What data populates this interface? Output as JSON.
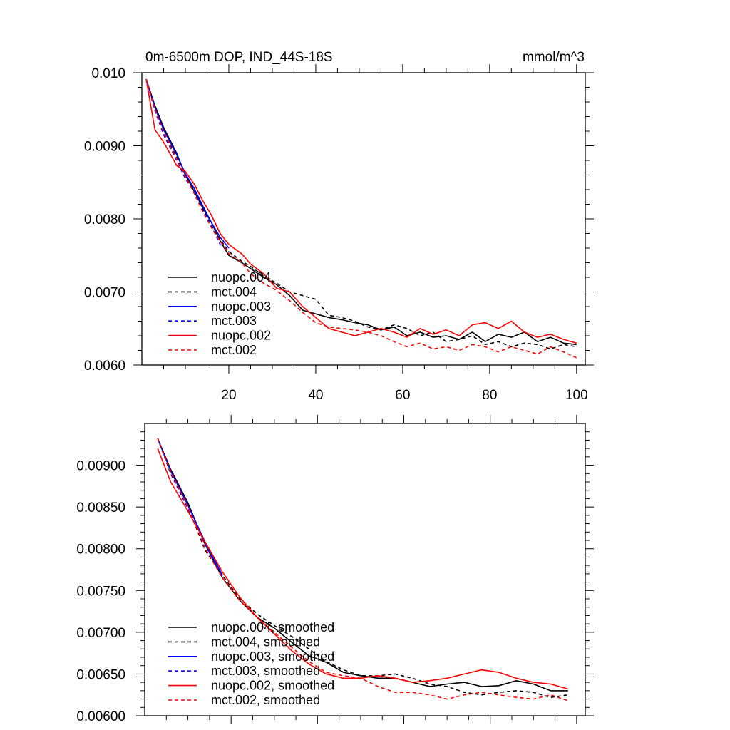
{
  "chart_data": [
    {
      "type": "line",
      "title": "0m-6500m DOP, IND_44S-18S",
      "units": "mmol/m^3",
      "xlim": [
        0,
        102
      ],
      "ylim": [
        0.006,
        0.01
      ],
      "x_ticks": [
        20,
        40,
        60,
        80,
        100
      ],
      "y_ticks": [
        0.006,
        0.007,
        0.008,
        0.009,
        0.01
      ],
      "y_tick_labels": [
        "0.0060",
        "0.0070",
        "0.0080",
        "0.0090",
        "0.010"
      ],
      "legend_position": "lower-left",
      "series": [
        {
          "name": "nuopc.004",
          "color": "#000000",
          "dash": "solid",
          "x": [
            1,
            3,
            5,
            8,
            10,
            12,
            14,
            16,
            18,
            20,
            23,
            25,
            28,
            31,
            34,
            37,
            40,
            43,
            46,
            49,
            52,
            55,
            58,
            61,
            64,
            67,
            70,
            73,
            76,
            79,
            82,
            85,
            88,
            91,
            94,
            97,
            100
          ],
          "values": [
            0.00991,
            0.00955,
            0.00925,
            0.0089,
            0.0086,
            0.00838,
            0.00815,
            0.00795,
            0.0077,
            0.0075,
            0.0074,
            0.00732,
            0.0072,
            0.0071,
            0.00695,
            0.00675,
            0.0067,
            0.00665,
            0.00662,
            0.00658,
            0.00655,
            0.00648,
            0.00652,
            0.0064,
            0.00645,
            0.00638,
            0.0064,
            0.00635,
            0.00645,
            0.00632,
            0.00642,
            0.00638,
            0.00645,
            0.00632,
            0.00638,
            0.0063,
            0.00628
          ]
        },
        {
          "name": "mct.004",
          "color": "#000000",
          "dash": "dashed",
          "x": [
            1,
            3,
            5,
            8,
            10,
            12,
            14,
            16,
            18,
            20,
            23,
            25,
            28,
            31,
            34,
            37,
            40,
            43,
            46,
            49,
            52,
            55,
            58,
            61,
            64,
            67,
            70,
            73,
            76,
            79,
            82,
            85,
            88,
            91,
            94,
            97,
            100
          ],
          "values": [
            0.00991,
            0.0095,
            0.00918,
            0.00885,
            0.00858,
            0.0084,
            0.00815,
            0.0079,
            0.00772,
            0.00755,
            0.00742,
            0.00735,
            0.00722,
            0.00712,
            0.007,
            0.00695,
            0.0069,
            0.00668,
            0.00665,
            0.0066,
            0.00652,
            0.00648,
            0.00655,
            0.0065,
            0.0064,
            0.00645,
            0.00632,
            0.00635,
            0.0064,
            0.00628,
            0.00632,
            0.00625,
            0.0063,
            0.00628,
            0.00622,
            0.00628,
            0.00625
          ]
        },
        {
          "name": "nuopc.003",
          "color": "#0000ff",
          "dash": "solid",
          "x": [
            1,
            3,
            5,
            8,
            10,
            12,
            14,
            16,
            18,
            20
          ],
          "values": [
            0.00991,
            0.00952,
            0.00922,
            0.00888,
            0.00862,
            0.00842,
            0.00818,
            0.00795,
            0.00775,
            0.0076
          ]
        },
        {
          "name": "mct.003",
          "color": "#0000ff",
          "dash": "dashed",
          "x": [
            1,
            3,
            5,
            8,
            10,
            12,
            14,
            16,
            18,
            20
          ],
          "values": [
            0.00991,
            0.00948,
            0.00915,
            0.0088,
            0.00855,
            0.00838,
            0.00812,
            0.0079,
            0.00765,
            0.00755
          ]
        },
        {
          "name": "nuopc.002",
          "color": "#ff0000",
          "dash": "solid",
          "x": [
            1,
            3,
            5,
            8,
            10,
            12,
            14,
            16,
            18,
            20,
            23,
            25,
            28,
            31,
            34,
            37,
            40,
            43,
            46,
            49,
            52,
            55,
            58,
            61,
            64,
            67,
            70,
            73,
            76,
            79,
            82,
            85,
            88,
            91,
            94,
            97,
            100
          ],
          "values": [
            0.00991,
            0.00922,
            0.00905,
            0.00873,
            0.00865,
            0.00848,
            0.00825,
            0.00805,
            0.0078,
            0.00765,
            0.00752,
            0.00738,
            0.00725,
            0.00705,
            0.007,
            0.0068,
            0.00665,
            0.0065,
            0.00645,
            0.0064,
            0.00645,
            0.0065,
            0.00645,
            0.00638,
            0.0065,
            0.00642,
            0.00648,
            0.0064,
            0.00655,
            0.00658,
            0.0065,
            0.0066,
            0.00645,
            0.00638,
            0.00642,
            0.00635,
            0.0063
          ]
        },
        {
          "name": "mct.002",
          "color": "#ff0000",
          "dash": "dashed",
          "x": [
            1,
            3,
            5,
            8,
            10,
            12,
            14,
            16,
            18,
            20,
            23,
            25,
            28,
            31,
            34,
            37,
            40,
            43,
            46,
            49,
            52,
            55,
            58,
            61,
            64,
            67,
            70,
            73,
            76,
            79,
            82,
            85,
            88,
            91,
            94,
            97,
            100
          ],
          "values": [
            0.00991,
            0.0095,
            0.00918,
            0.00882,
            0.00858,
            0.00835,
            0.0081,
            0.00788,
            0.0077,
            0.00752,
            0.0074,
            0.00725,
            0.00712,
            0.00702,
            0.00688,
            0.00672,
            0.00658,
            0.00652,
            0.0065,
            0.00648,
            0.00645,
            0.0064,
            0.00632,
            0.00625,
            0.0063,
            0.00622,
            0.00625,
            0.0062,
            0.00628,
            0.00625,
            0.00618,
            0.00625,
            0.0062,
            0.00615,
            0.00625,
            0.00618,
            0.0061
          ]
        }
      ]
    },
    {
      "type": "line",
      "xlim": [
        0,
        102
      ],
      "ylim": [
        0.006,
        0.0095
      ],
      "x_ticks": [
        20,
        40,
        60,
        80,
        100
      ],
      "y_ticks": [
        0.006,
        0.0065,
        0.007,
        0.0075,
        0.008,
        0.0085,
        0.009
      ],
      "y_tick_labels": [
        "0.00600",
        "0.00650",
        "0.00700",
        "0.00750",
        "0.00800",
        "0.00850",
        "0.00900"
      ],
      "legend_position": "lower-left",
      "series": [
        {
          "name": "nuopc.004, smoothed",
          "color": "#000000",
          "dash": "solid",
          "x": [
            3,
            6,
            10,
            14,
            18,
            22,
            26,
            30,
            34,
            38,
            42,
            46,
            50,
            54,
            58,
            62,
            66,
            70,
            74,
            78,
            82,
            86,
            90,
            94,
            98
          ],
          "values": [
            0.00932,
            0.00895,
            0.00855,
            0.00805,
            0.00765,
            0.00738,
            0.00718,
            0.00705,
            0.00688,
            0.00672,
            0.00664,
            0.00652,
            0.00648,
            0.00645,
            0.00645,
            0.0064,
            0.00635,
            0.00638,
            0.0064,
            0.00635,
            0.00636,
            0.00642,
            0.00638,
            0.0063,
            0.0063
          ]
        },
        {
          "name": "mct.004, smoothed",
          "color": "#000000",
          "dash": "dashed",
          "x": [
            3,
            6,
            10,
            14,
            18,
            22,
            26,
            30,
            34,
            38,
            42,
            46,
            50,
            54,
            58,
            62,
            66,
            70,
            74,
            78,
            82,
            86,
            90,
            94,
            98
          ],
          "values": [
            0.00932,
            0.0089,
            0.0085,
            0.00798,
            0.00768,
            0.0074,
            0.00722,
            0.00708,
            0.00695,
            0.0068,
            0.00665,
            0.00655,
            0.00648,
            0.00648,
            0.0065,
            0.00645,
            0.00638,
            0.00635,
            0.00628,
            0.00625,
            0.00628,
            0.0063,
            0.00628,
            0.00622,
            0.00625
          ]
        },
        {
          "name": "nuopc.003, smoothed",
          "color": "#0000ff",
          "dash": "solid",
          "x": [
            3,
            6,
            10,
            14,
            18
          ],
          "values": [
            0.00932,
            0.00893,
            0.00852,
            0.00808,
            0.00768
          ]
        },
        {
          "name": "mct.003, smoothed",
          "color": "#0000ff",
          "dash": "dashed",
          "x": [
            3,
            6,
            10,
            14,
            18
          ],
          "values": [
            0.00932,
            0.0089,
            0.00848,
            0.00805,
            0.00765
          ]
        },
        {
          "name": "nuopc.002, smoothed",
          "color": "#ff0000",
          "dash": "solid",
          "x": [
            3,
            6,
            10,
            14,
            18,
            22,
            26,
            30,
            34,
            38,
            42,
            46,
            50,
            54,
            58,
            62,
            66,
            70,
            74,
            78,
            82,
            86,
            90,
            94,
            98
          ],
          "values": [
            0.0092,
            0.0088,
            0.00845,
            0.00808,
            0.00772,
            0.00742,
            0.00718,
            0.00698,
            0.00678,
            0.00662,
            0.0065,
            0.00645,
            0.00645,
            0.00648,
            0.00645,
            0.0064,
            0.00642,
            0.00645,
            0.0065,
            0.00655,
            0.00652,
            0.00645,
            0.0064,
            0.00638,
            0.00632
          ]
        },
        {
          "name": "mct.002, smoothed",
          "color": "#ff0000",
          "dash": "dashed",
          "x": [
            3,
            6,
            10,
            14,
            18,
            22,
            26,
            30,
            34,
            38,
            42,
            46,
            50,
            54,
            58,
            62,
            66,
            70,
            74,
            78,
            82,
            86,
            90,
            94,
            98
          ],
          "values": [
            0.00932,
            0.00892,
            0.0085,
            0.008,
            0.00765,
            0.00738,
            0.00718,
            0.007,
            0.00682,
            0.00665,
            0.00652,
            0.00648,
            0.00645,
            0.00635,
            0.00628,
            0.00628,
            0.00625,
            0.0062,
            0.00625,
            0.00628,
            0.00625,
            0.00622,
            0.0062,
            0.00625,
            0.00618
          ]
        }
      ]
    }
  ]
}
